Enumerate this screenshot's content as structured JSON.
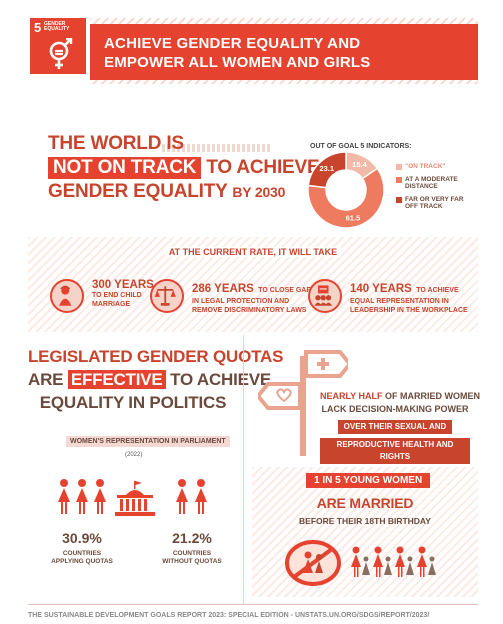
{
  "header": {
    "goal_number": "5",
    "goal_label": "GENDER EQUALITY",
    "title_line1": "ACHIEVE GENDER EQUALITY AND",
    "title_line2": "EMPOWER ALL WOMEN AND GIRLS"
  },
  "headline": {
    "line1": "THE WORLD IS",
    "line2_box": "NOT ON TRACK",
    "line2_rest": "TO ACHIEVE",
    "line3": "GENDER EQUALITY",
    "line3_year": "BY 2030"
  },
  "indicators": {
    "label": "OUT OF GOAL 5 INDICATORS:",
    "values": [
      {
        "label": "\"ON TRACK\"",
        "value": "15.4",
        "pct": 15.4,
        "color": "#f2b9a6"
      },
      {
        "label": "AT A MODERATE DISTANCE",
        "value": "61.5",
        "pct": 61.5,
        "color": "#ee7a5f"
      },
      {
        "label": "FAR OR VERY FAR OFF TRACK",
        "value": "23.1",
        "pct": 23.1,
        "color": "#c8442c"
      }
    ]
  },
  "rate": {
    "title": "AT THE CURRENT RATE, IT WILL TAKE",
    "stats": [
      {
        "big": "300 YEARS",
        "line1": "TO END CHILD",
        "line2": "MARRIAGE",
        "small": ""
      },
      {
        "big": "286 YEARS",
        "small": "TO CLOSE GAPS",
        "line1": "IN LEGAL PROTECTION AND",
        "line2": "REMOVE DISCRIMINATORY LAWS"
      },
      {
        "big": "140 YEARS",
        "small": "TO ACHIEVE",
        "line1": "EQUAL REPRESENTATION IN",
        "line2": "LEADERSHIP IN THE WORKPLACE"
      }
    ]
  },
  "quotas": {
    "line1": "LEGISLATED GENDER QUOTAS",
    "line2_pre": "ARE",
    "line2_box": "EFFECTIVE",
    "line2_post": "TO ACHIEVE",
    "line3": "EQUALITY IN POLITICS",
    "rep_label": "WOMEN'S REPRESENTATION IN PARLIAMENT",
    "rep_year": "(2022)",
    "with_pct": "30.9%",
    "with_label1": "COUNTRIES",
    "with_label2": "APPLYING QUOTAS",
    "without_pct": "21.2%",
    "without_label1": "COUNTRIES",
    "without_label2": "WITHOUT QUOTAS"
  },
  "decision": {
    "line1_red": "NEARLY HALF",
    "line1_rest": "OF MARRIED WOMEN",
    "line2": "LACK DECISION-MAKING POWER",
    "box1": "OVER THEIR SEXUAL AND",
    "box2": "REPRODUCTIVE HEALTH AND RIGHTS"
  },
  "young": {
    "box": "1 IN 5 YOUNG WOMEN",
    "married": "ARE MARRIED",
    "before": "BEFORE THEIR 18TH BIRTHDAY"
  },
  "footer": {
    "text": "THE SUSTAINABLE DEVELOPMENT GOALS REPORT 2023: SPECIAL EDITION - UNSTATS.UN.ORG/SDGS/REPORT/2023/"
  },
  "colors": {
    "accent": "#e5432f",
    "dark_red": "#c8442c",
    "brown": "#6b4a3c"
  }
}
